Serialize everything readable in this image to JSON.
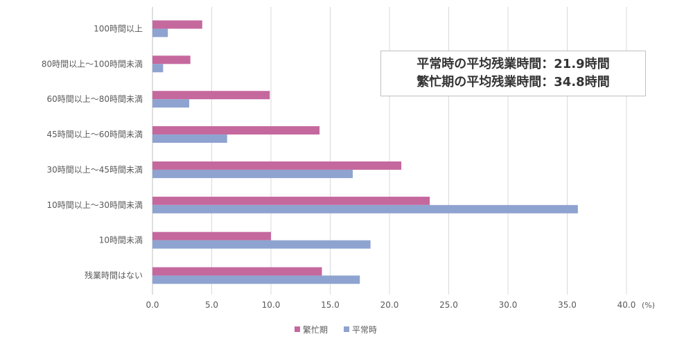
{
  "chart_data": {
    "type": "bar",
    "orientation": "horizontal",
    "categories": [
      "100時間以上",
      "80時間以上～100時間未満",
      "60時間以上～80時間未満",
      "45時間以上～60時間未満",
      "30時間以上～45時間未満",
      "10時間以上～30時間未満",
      "10時間未満",
      "残業時間はない"
    ],
    "series": [
      {
        "name": "繁忙期",
        "color": "#c5689e",
        "values": [
          4.2,
          3.2,
          9.9,
          14.1,
          21.0,
          23.4,
          10.0,
          14.3
        ]
      },
      {
        "name": "平常時",
        "color": "#8ea3d0",
        "values": [
          1.3,
          0.9,
          3.1,
          6.3,
          16.9,
          35.9,
          18.4,
          17.5
        ]
      }
    ],
    "xlim": [
      0,
      40
    ],
    "xticks": [
      "0.0",
      "5.0",
      "10.0",
      "15.0",
      "20.0",
      "25.0",
      "30.0",
      "35.0",
      "40.0"
    ],
    "xunit": "(%)",
    "grid": true,
    "legend_position": "bottom",
    "annotations": [
      "平常時の平均残業時間：21.9時間",
      "繁忙期の平均残業時間：34.8時間"
    ]
  }
}
